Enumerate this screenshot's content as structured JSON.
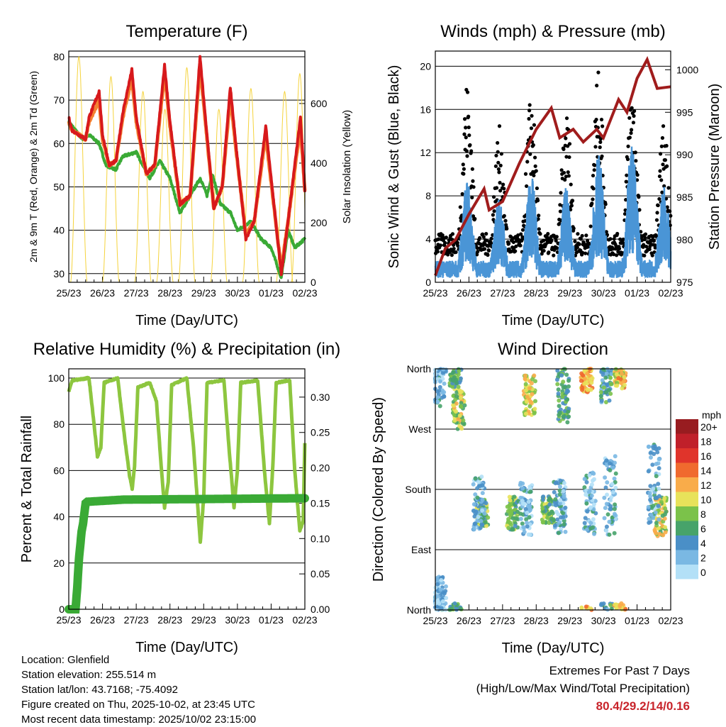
{
  "chart_data": [
    {
      "type": "line",
      "title": "Temperature (F)",
      "xlabel": "Time (Day/UTC)",
      "ylabel": "2m & 9m T (Red, Orange) & 2m Td (Green)",
      "y2label": "Solar Insolation (Yellow)",
      "xticks": [
        "25/23",
        "26/23",
        "27/23",
        "28/23",
        "29/23",
        "30/23",
        "01/23",
        "02/23"
      ],
      "yticks": [
        "30",
        "40",
        "50",
        "60",
        "70",
        "80"
      ],
      "y2ticks": [
        "0",
        "200",
        "400",
        "600"
      ],
      "ylim": [
        28,
        81.3
      ],
      "y2lim": [
        0,
        776
      ],
      "xlim": [
        0,
        7
      ],
      "series": [
        {
          "name": "2m T",
          "color": "#d7191c",
          "points": [
            [
              0,
              66
            ],
            [
              0.1,
              63
            ],
            [
              0.5,
              61
            ],
            [
              0.6,
              66
            ],
            [
              0.9,
              72
            ],
            [
              1.0,
              62
            ],
            [
              1.2,
              55
            ],
            [
              1.4,
              56
            ],
            [
              1.6,
              67
            ],
            [
              1.87,
              77
            ],
            [
              2.0,
              66
            ],
            [
              2.3,
              53
            ],
            [
              2.55,
              55
            ],
            [
              2.84,
              78
            ],
            [
              3.0,
              65
            ],
            [
              3.3,
              46
            ],
            [
              3.6,
              48
            ],
            [
              3.89,
              80
            ],
            [
              4.05,
              66
            ],
            [
              4.3,
              45
            ],
            [
              4.55,
              50
            ],
            [
              4.79,
              73
            ],
            [
              4.95,
              60
            ],
            [
              5.25,
              38
            ],
            [
              5.5,
              42
            ],
            [
              5.84,
              64
            ],
            [
              6.0,
              52
            ],
            [
              6.3,
              30
            ],
            [
              6.5,
              42
            ],
            [
              6.87,
              66
            ],
            [
              7.0,
              49
            ]
          ]
        },
        {
          "name": "9m T",
          "color": "#f58231",
          "points": [
            [
              0,
              65
            ],
            [
              0.1,
              63
            ],
            [
              0.5,
              61
            ],
            [
              0.6,
              65
            ],
            [
              0.9,
              70
            ],
            [
              1.0,
              61
            ],
            [
              1.2,
              55
            ],
            [
              1.4,
              56
            ],
            [
              1.6,
              66
            ],
            [
              1.87,
              75
            ],
            [
              2.0,
              65
            ],
            [
              2.3,
              53
            ],
            [
              2.55,
              55
            ],
            [
              2.84,
              76
            ],
            [
              3.0,
              64
            ],
            [
              3.3,
              46
            ],
            [
              3.6,
              48
            ],
            [
              3.89,
              78
            ],
            [
              4.05,
              65
            ],
            [
              4.3,
              45
            ],
            [
              4.55,
              50
            ],
            [
              4.79,
              71
            ],
            [
              4.95,
              59
            ],
            [
              5.25,
              39
            ],
            [
              5.5,
              42
            ],
            [
              5.84,
              62
            ],
            [
              6.0,
              51
            ],
            [
              6.3,
              31
            ],
            [
              6.5,
              42
            ],
            [
              6.87,
              64
            ],
            [
              7.0,
              49
            ]
          ]
        },
        {
          "name": "2m Td",
          "color": "#3aaa35",
          "points": [
            [
              0,
              65
            ],
            [
              0.4,
              61
            ],
            [
              0.6,
              62
            ],
            [
              0.9,
              60
            ],
            [
              1.1,
              55
            ],
            [
              1.4,
              54
            ],
            [
              1.6,
              57
            ],
            [
              2.0,
              58
            ],
            [
              2.4,
              52
            ],
            [
              2.7,
              56
            ],
            [
              3.0,
              52
            ],
            [
              3.3,
              44
            ],
            [
              3.6,
              48
            ],
            [
              3.9,
              52
            ],
            [
              4.1,
              48
            ],
            [
              4.25,
              53
            ],
            [
              4.5,
              46
            ],
            [
              4.8,
              44
            ],
            [
              5.0,
              40
            ],
            [
              5.4,
              42
            ],
            [
              5.7,
              38
            ],
            [
              6.0,
              36
            ],
            [
              6.3,
              29
            ],
            [
              6.5,
              40
            ],
            [
              6.7,
              36
            ],
            [
              7.0,
              38
            ]
          ]
        },
        {
          "name": "Solar",
          "color": "#f5d33c",
          "axis": "y2",
          "peaks": [
            [
              0.3,
              757
            ],
            [
              1.25,
              690
            ],
            [
              2.2,
              640
            ],
            [
              2.85,
              580
            ],
            [
              3.5,
              720
            ],
            [
              4.45,
              580
            ],
            [
              5.4,
              650
            ],
            [
              6.4,
              640
            ],
            [
              6.85,
              700
            ]
          ]
        }
      ]
    },
    {
      "type": "scatter",
      "title": "Winds (mph) & Pressure (mb)",
      "xlabel": "Time (Day/UTC)",
      "ylabel": "Sonic Wind & Gust (Blue, Black)",
      "y2label": "Station Pressure (Maroon)",
      "xticks": [
        "25/23",
        "26/23",
        "27/23",
        "28/23",
        "29/23",
        "30/23",
        "01/23",
        "02/23"
      ],
      "yticks": [
        "0",
        "4",
        "8",
        "12",
        "16",
        "20"
      ],
      "y2ticks": [
        "975",
        "980",
        "985",
        "990",
        "995",
        "1000"
      ],
      "ylim": [
        0,
        21.4
      ],
      "y2lim": [
        975,
        1002.2
      ],
      "xlim": [
        0,
        7
      ],
      "daily_gust_peak": [
        [
          0.95,
          18.8
        ],
        [
          1.9,
          14.5
        ],
        [
          2.85,
          17.5
        ],
        [
          3.9,
          16
        ],
        [
          4.85,
          19.5
        ],
        [
          5.85,
          19
        ],
        [
          6.8,
          15
        ]
      ],
      "daily_wind_peak": [
        [
          0.95,
          9.5
        ],
        [
          1.9,
          8
        ],
        [
          2.85,
          10
        ],
        [
          3.9,
          9
        ],
        [
          4.85,
          12
        ],
        [
          5.85,
          13
        ],
        [
          6.8,
          9
        ]
      ],
      "pressure": [
        [
          0,
          975.8
        ],
        [
          0.3,
          979
        ],
        [
          0.6,
          980
        ],
        [
          1.0,
          983
        ],
        [
          1.45,
          986
        ],
        [
          1.6,
          983.5
        ],
        [
          2.0,
          984.5
        ],
        [
          2.5,
          989
        ],
        [
          3.0,
          993
        ],
        [
          3.45,
          995.5
        ],
        [
          3.7,
          992
        ],
        [
          4.1,
          993
        ],
        [
          4.4,
          991.5
        ],
        [
          4.8,
          993
        ],
        [
          5.0,
          992
        ],
        [
          5.45,
          996.5
        ],
        [
          5.7,
          995
        ],
        [
          6.0,
          999
        ],
        [
          6.3,
          1001.2
        ],
        [
          6.6,
          997.8
        ],
        [
          7.0,
          998
        ]
      ]
    },
    {
      "type": "line",
      "title": "Relative Humidity (%) & Precipitation (in)",
      "xlabel": "Time (Day/UTC)",
      "ylabel": "Percent & Total Rainfall",
      "xticks": [
        "25/23",
        "26/23",
        "27/23",
        "28/23",
        "29/23",
        "30/23",
        "01/23",
        "02/23"
      ],
      "yticks": [
        "0",
        "20",
        "40",
        "60",
        "80",
        "100"
      ],
      "y2ticks": [
        "0.00",
        "0.05",
        "0.10",
        "0.15",
        "0.20",
        "0.25",
        "0.30"
      ],
      "ylim": [
        0,
        104
      ],
      "y2lim": [
        0,
        0.34
      ],
      "xlim": [
        0,
        7
      ],
      "series": [
        {
          "name": "RH",
          "color": "#8dc63f",
          "points": [
            [
              0,
              94
            ],
            [
              0.1,
              99
            ],
            [
              0.6,
              100
            ],
            [
              0.75,
              80
            ],
            [
              0.85,
              66
            ],
            [
              0.95,
              70
            ],
            [
              1.05,
              98
            ],
            [
              1.45,
              100
            ],
            [
              1.65,
              75
            ],
            [
              1.8,
              58
            ],
            [
              1.88,
              52
            ],
            [
              1.95,
              62
            ],
            [
              2.05,
              96
            ],
            [
              2.4,
              98
            ],
            [
              2.6,
              90
            ],
            [
              2.75,
              60
            ],
            [
              2.84,
              44
            ],
            [
              2.95,
              55
            ],
            [
              3.05,
              97
            ],
            [
              3.5,
              100
            ],
            [
              3.7,
              70
            ],
            [
              3.9,
              29
            ],
            [
              4.0,
              48
            ],
            [
              4.1,
              98
            ],
            [
              4.6,
              99
            ],
            [
              4.75,
              70
            ],
            [
              4.9,
              44
            ],
            [
              5.0,
              60
            ],
            [
              5.1,
              98
            ],
            [
              5.6,
              99
            ],
            [
              5.8,
              60
            ],
            [
              5.95,
              37
            ],
            [
              6.05,
              62
            ],
            [
              6.15,
              98
            ],
            [
              6.55,
              99
            ],
            [
              6.7,
              60
            ],
            [
              6.85,
              34
            ],
            [
              6.95,
              38
            ],
            [
              7.0,
              72
            ]
          ]
        },
        {
          "name": "Precipitation",
          "color": "#3aaa35",
          "axis": "y2",
          "points": [
            [
              0,
              0
            ],
            [
              0.2,
              0
            ],
            [
              0.25,
              0.03
            ],
            [
              0.3,
              0.07
            ],
            [
              0.38,
              0.11
            ],
            [
              0.42,
              0.12
            ],
            [
              0.5,
              0.15
            ],
            [
              0.55,
              0.152
            ],
            [
              1.6,
              0.155
            ],
            [
              7,
              0.157
            ]
          ]
        }
      ]
    },
    {
      "type": "scatter",
      "title": "Wind Direction",
      "xlabel": "Time (Day/UTC)",
      "ylabel": "Direction (Colored By Speed)",
      "xticks": [
        "25/23",
        "26/23",
        "27/23",
        "28/23",
        "29/23",
        "30/23",
        "01/23",
        "02/23"
      ],
      "yticks": [
        "North",
        "East",
        "South",
        "West",
        "North"
      ],
      "ylim": [
        0,
        360
      ],
      "xlim": [
        0,
        7
      ],
      "legend": {
        "title": "mph",
        "labels": [
          "0",
          "2",
          "4",
          "6",
          "8",
          "10",
          "12",
          "14",
          "16",
          "18",
          "20+"
        ],
        "colors": [
          "#b3e0f7",
          "#7ab8e3",
          "#4a8fc7",
          "#47a36a",
          "#7bc24a",
          "#e8e25a",
          "#f9ac4a",
          "#f06a2e",
          "#e0342b",
          "#c0202a",
          "#981c20"
        ],
        "placement": "right"
      },
      "clusters": [
        [
          0.1,
          340,
          40,
          3
        ],
        [
          0.15,
          20,
          30,
          2
        ],
        [
          0.7,
          300,
          30,
          9
        ],
        [
          0.6,
          350,
          20,
          6
        ],
        [
          1.4,
          145,
          20,
          7
        ],
        [
          1.3,
          160,
          40,
          3
        ],
        [
          2.3,
          145,
          25,
          7
        ],
        [
          2.8,
          320,
          30,
          10
        ],
        [
          2.7,
          150,
          40,
          3
        ],
        [
          3.35,
          150,
          20,
          7
        ],
        [
          3.8,
          320,
          40,
          6
        ],
        [
          3.7,
          155,
          40,
          3
        ],
        [
          4.5,
          345,
          20,
          12
        ],
        [
          4.6,
          160,
          50,
          3
        ],
        [
          5.1,
          340,
          30,
          5
        ],
        [
          5.5,
          350,
          20,
          11
        ],
        [
          5.2,
          170,
          60,
          3
        ],
        [
          6.7,
          140,
          30,
          9
        ],
        [
          6.5,
          190,
          60,
          3
        ]
      ]
    }
  ],
  "footer": {
    "location": "Location: Glenfield",
    "elevation": "Station elevation: 255.514 m",
    "latlon": "Station lat/lon: 43.7168; -75.4092",
    "created": "Figure created on Thu, 2025-10-02, at 23:45 UTC",
    "timestamp": "Most recent data timestamp: 2025/10/02 23:15:00"
  },
  "extremes": {
    "title": "Extremes For Past 7 Days",
    "subtitle": "(High/Low/Max Wind/Total Precipitation)",
    "values": "80.4/29.2/14/0.16"
  }
}
